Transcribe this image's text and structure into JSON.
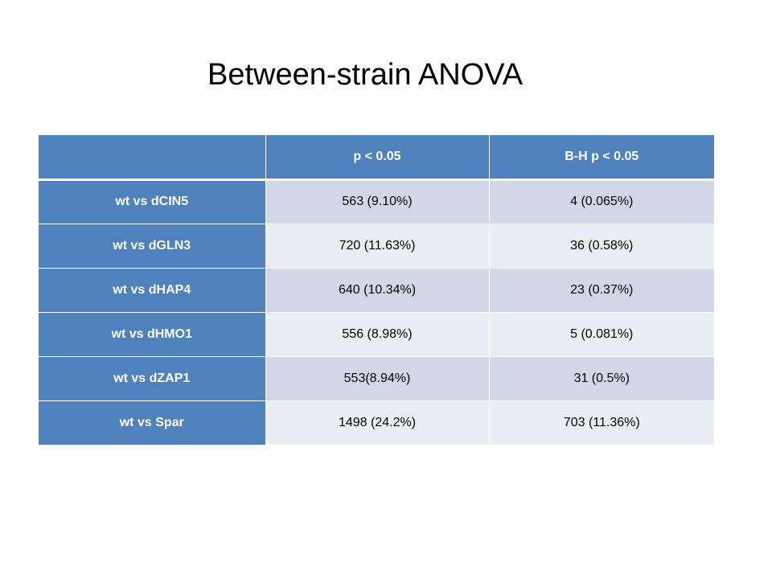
{
  "slide": {
    "title": "Between-strain ANOVA"
  },
  "table": {
    "headers": [
      "",
      "p < 0.05",
      "B-H p < 0.05"
    ],
    "rows": [
      {
        "label": "wt vs dCIN5",
        "p": "563 (9.10%)",
        "bh": "4 (0.065%)"
      },
      {
        "label": "wt vs dGLN3",
        "p": "720 (11.63%)",
        "bh": "36 (0.58%)"
      },
      {
        "label": "wt vs dHAP4",
        "p": "640 (10.34%)",
        "bh": "23 (0.37%)"
      },
      {
        "label": "wt vs dHMO1",
        "p": "556 (8.98%)",
        "bh": "5 (0.081%)"
      },
      {
        "label": "wt vs dZAP1",
        "p": "553(8.94%)",
        "bh": "31 (0.5%)"
      },
      {
        "label": "wt vs Spar",
        "p": "1498 (24.2%)",
        "bh": "703 (11.36%)"
      }
    ]
  },
  "colors": {
    "header_blue": "#4f81bd",
    "band_dark": "#d0d8e8",
    "band_light": "#e9edf4"
  }
}
